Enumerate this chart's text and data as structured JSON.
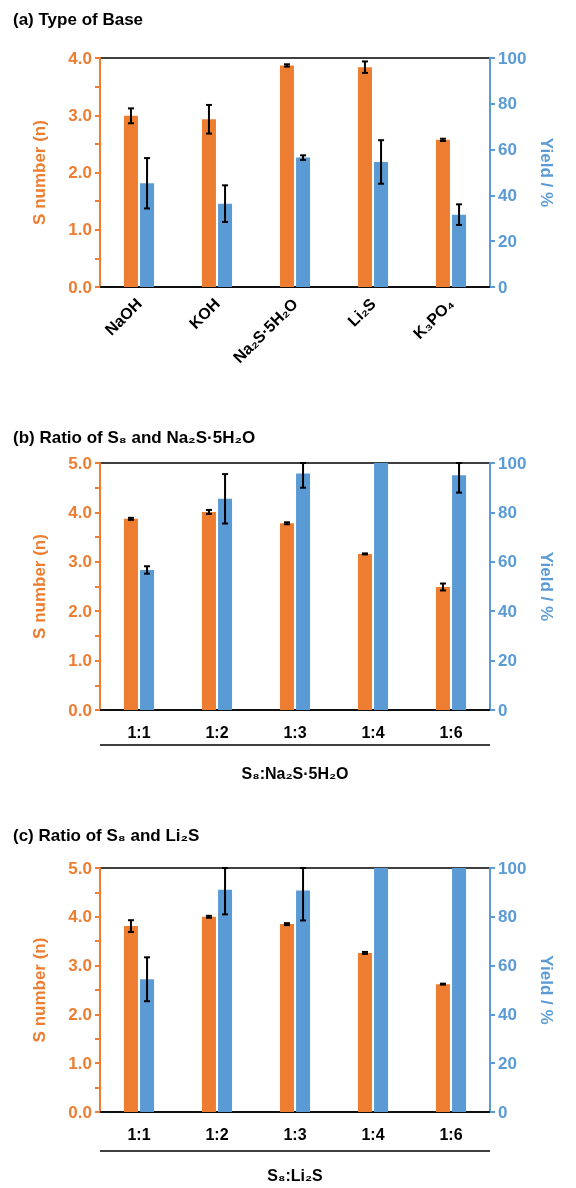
{
  "chart_data": [
    {
      "type": "bar",
      "title": "(a) Type of Base",
      "ylabel": "S number (n)",
      "y2label": "Yield / %",
      "categories": [
        "NaOH",
        "KOH",
        "Na₂S·5H₂O",
        "Li₂S",
        "K₃PO₄"
      ],
      "series": [
        {
          "color": "#ed7d31",
          "values": [
            2.99,
            2.93,
            3.87,
            3.84,
            2.57
          ],
          "errors": [
            0.13,
            0.25,
            0.02,
            0.1,
            0.02
          ]
        },
        {
          "color": "#5b9bd5",
          "axis": "y2",
          "values": [
            45.3,
            36.4,
            56.5,
            54.6,
            31.6
          ],
          "errors": [
            11,
            8,
            1,
            9.5,
            4.5
          ]
        }
      ],
      "ylim": [
        0,
        4
      ],
      "yticks": [
        {
          "value": 0,
          "label": "0.0"
        },
        {
          "value": 0.5,
          "label": null
        },
        {
          "value": 1,
          "label": "1.0"
        },
        {
          "value": 1.5,
          "label": null
        },
        {
          "value": 2,
          "label": "2.0"
        },
        {
          "value": 2.5,
          "label": null
        },
        {
          "value": 3,
          "label": "3.0"
        },
        {
          "value": 3.5,
          "label": null
        },
        {
          "value": 4,
          "label": "4.0"
        }
      ],
      "y2lim": [
        0,
        100
      ],
      "y2ticks": [
        0,
        20,
        40,
        60,
        80,
        100
      ]
    },
    {
      "type": "bar",
      "title": "(b) Ratio of S₈ and Na₂S·5H₂O",
      "ylabel": "S number (n)",
      "y2label": "Yield / %",
      "xlabel": "S₈:Na₂S·5H₂O",
      "categories": [
        "1:1",
        "1:2",
        "1:3",
        "1:4",
        "1:6"
      ],
      "series": [
        {
          "color": "#ed7d31",
          "values": [
            3.87,
            4.01,
            3.78,
            3.16,
            2.49
          ],
          "errors": [
            0.02,
            0.04,
            0.02,
            0.01,
            0.07
          ]
        },
        {
          "color": "#5b9bd5",
          "axis": "y2",
          "values": [
            56.7,
            85.5,
            95.7,
            100,
            95
          ],
          "errors": [
            1.5,
            10,
            [
              90,
              100
            ],
            null,
            [
              88,
              100
            ]
          ]
        }
      ],
      "ylim": [
        0,
        5
      ],
      "yticks": [
        {
          "value": 0,
          "label": "0.0"
        },
        {
          "value": 0.5,
          "label": null
        },
        {
          "value": 1,
          "label": "1.0"
        },
        {
          "value": 1.5,
          "label": null
        },
        {
          "value": 2,
          "label": "2.0"
        },
        {
          "value": 2.5,
          "label": null
        },
        {
          "value": 3,
          "label": "3.0"
        },
        {
          "value": 3.5,
          "label": null
        },
        {
          "value": 4,
          "label": "4.0"
        },
        {
          "value": 4.5,
          "label": null
        },
        {
          "value": 5,
          "label": "5.0"
        }
      ],
      "y2lim": [
        0,
        100
      ],
      "y2ticks": [
        0,
        20,
        40,
        60,
        80,
        100
      ]
    },
    {
      "type": "bar",
      "title": "(c) Ratio of S₈ and Li₂S",
      "ylabel": "S number (n)",
      "y2label": "Yield / %",
      "xlabel": "S₈:Li₂S",
      "categories": [
        "1:1",
        "1:2",
        "1:3",
        "1:4",
        "1:6"
      ],
      "series": [
        {
          "color": "#ed7d31",
          "values": [
            3.81,
            4.0,
            3.85,
            3.26,
            2.62
          ],
          "errors": [
            0.12,
            0.02,
            0.02,
            0.02,
            0.01
          ]
        },
        {
          "color": "#5b9bd5",
          "axis": "y2",
          "values": [
            54.4,
            91.1,
            90.8,
            100,
            100
          ],
          "errors": [
            9,
            [
              81,
              100
            ],
            [
              78.5,
              100
            ],
            null,
            null
          ]
        }
      ],
      "ylim": [
        0,
        5
      ],
      "yticks": [
        {
          "value": 0,
          "label": "0.0"
        },
        {
          "value": 0.5,
          "label": null
        },
        {
          "value": 1,
          "label": "1.0"
        },
        {
          "value": 1.5,
          "label": null
        },
        {
          "value": 2,
          "label": "2.0"
        },
        {
          "value": 2.5,
          "label": null
        },
        {
          "value": 3,
          "label": "3.0"
        },
        {
          "value": 3.5,
          "label": null
        },
        {
          "value": 4,
          "label": "4.0"
        },
        {
          "value": 4.5,
          "label": null
        },
        {
          "value": 5,
          "label": "5.0"
        }
      ],
      "y2lim": [
        0,
        100
      ],
      "y2ticks": [
        0,
        20,
        40,
        60,
        80,
        100
      ]
    }
  ]
}
